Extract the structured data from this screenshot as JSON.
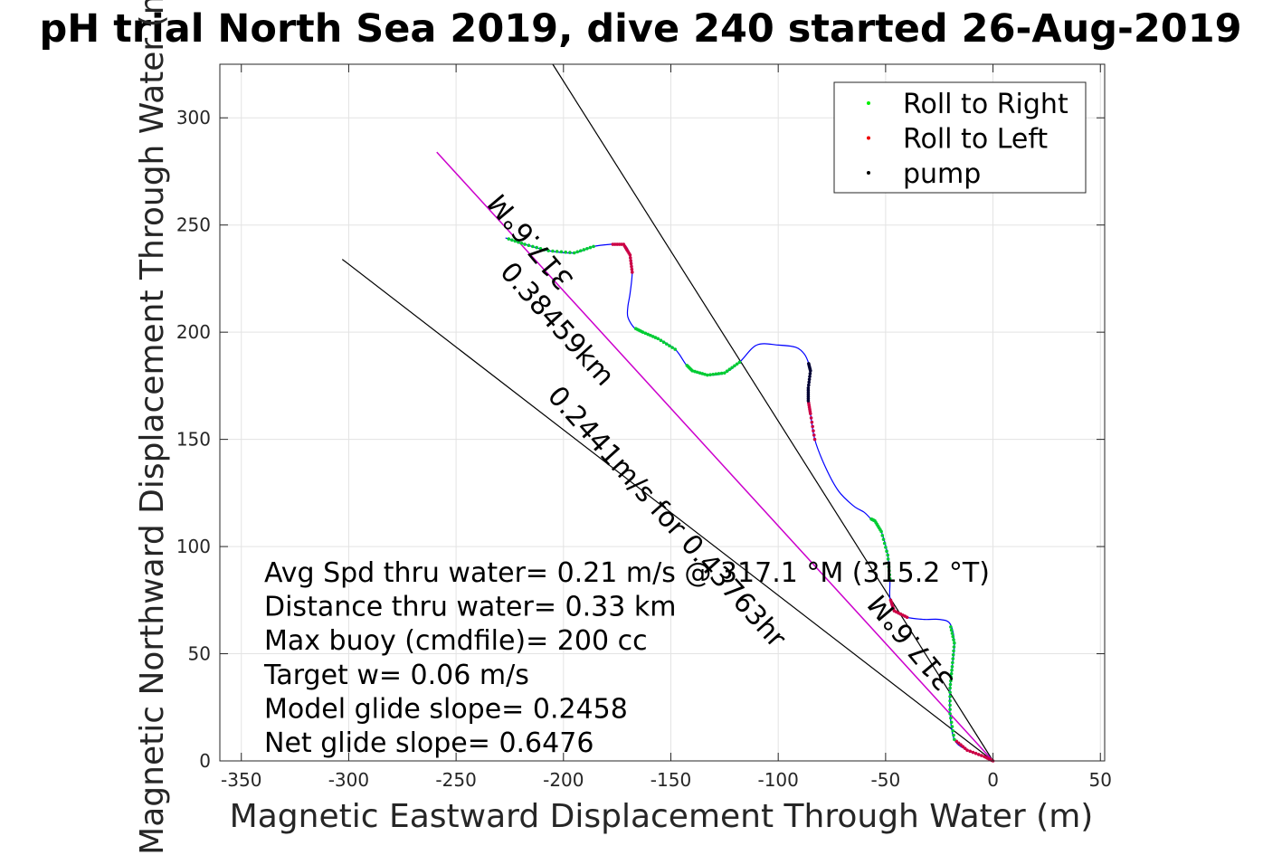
{
  "chart_data": {
    "type": "line",
    "title": "pH trial North Sea 2019, dive 240 started 26-Aug-2019",
    "xlabel": "Magnetic Eastward Displacement Through Water (m)",
    "ylabel": "Magnetic Northward Displacement Through Water (m)",
    "xlim": [
      -360,
      52
    ],
    "ylim": [
      0,
      325
    ],
    "xticks": [
      -350,
      -300,
      -250,
      -200,
      -150,
      -100,
      -50,
      0,
      50
    ],
    "yticks": [
      0,
      50,
      100,
      150,
      200,
      250,
      300
    ],
    "grid": true,
    "legend": {
      "placement": "top-right",
      "entries": [
        {
          "label": "Roll to Right",
          "color": "#00ee00"
        },
        {
          "label": "Roll to Left",
          "color": "#ee0000"
        },
        {
          "label": "pump",
          "color": "#000000"
        }
      ]
    },
    "colors": {
      "track": "#0000ff",
      "roll_right": "#00cc33",
      "roll_left": "#cc0044",
      "pump": "#000033",
      "mean_line": "#cc00cc",
      "ref_lines": "#000000"
    },
    "track": {
      "x": [
        0,
        -4,
        -12,
        -18,
        -20,
        -20,
        -19,
        -18,
        -20,
        -25,
        -32,
        -40,
        -46,
        -48,
        -48,
        -49,
        -52,
        -55,
        -57,
        -57,
        -60,
        -65,
        -72,
        -78,
        -83,
        -85,
        -86,
        -86,
        -85,
        -86,
        -88,
        -92,
        -100,
        -110,
        -118,
        -125,
        -133,
        -140,
        -143,
        -148,
        -156,
        -163,
        -167,
        -170,
        -170,
        -169,
        -168,
        -169,
        -172,
        -178,
        -186,
        -195,
        -207,
        -218,
        -227
      ],
      "y": [
        0,
        2,
        5,
        10,
        22,
        34,
        44,
        55,
        64,
        66,
        66,
        67,
        70,
        76,
        85,
        96,
        107,
        112,
        113,
        113,
        116,
        119,
        126,
        137,
        150,
        162,
        168,
        174,
        182,
        186,
        190,
        193,
        194,
        194,
        186,
        181,
        180,
        182,
        185,
        192,
        197,
        200,
        202,
        207,
        212,
        218,
        228,
        236,
        241,
        241,
        240,
        237,
        238,
        241,
        244
      ]
    },
    "segments": [
      {
        "kind": "roll_left",
        "from": 0,
        "to": 3
      },
      {
        "kind": "roll_right",
        "from": 3,
        "to": 8
      },
      {
        "kind": "roll_left",
        "from": 11,
        "to": 13
      },
      {
        "kind": "roll_right",
        "from": 14,
        "to": 18
      },
      {
        "kind": "roll_left",
        "from": 24,
        "to": 26
      },
      {
        "kind": "pump",
        "from": 26,
        "to": 29
      },
      {
        "kind": "roll_right",
        "from": 34,
        "to": 38
      },
      {
        "kind": "roll_right",
        "from": 39,
        "to": 42
      },
      {
        "kind": "roll_left",
        "from": 46,
        "to": 49
      },
      {
        "kind": "roll_right",
        "from": 50,
        "to": 54
      }
    ],
    "ref_lines": [
      {
        "x": [
          0,
          -205
        ],
        "y": [
          0,
          325
        ]
      },
      {
        "x": [
          0,
          -303
        ],
        "y": [
          0,
          234
        ]
      }
    ],
    "mean_line": {
      "x": [
        0,
        -259
      ],
      "y": [
        0,
        284
      ]
    },
    "annotations": [
      {
        "text": "317.6°M",
        "x": -212,
        "y": 245,
        "rotate": 230
      },
      {
        "text": "0.38459km",
        "x": -206,
        "y": 201,
        "rotate": 48
      },
      {
        "text": "0.2441m/s for 0.43763hr",
        "x": -155,
        "y": 111,
        "rotate": 48
      },
      {
        "text": "317.6°M",
        "x": -35,
        "y": 58,
        "rotate": 230
      }
    ],
    "stats": [
      "Avg Spd thru water=  0.21 m/s @ 317.1 °M (315.2 °T)",
      "Distance thru water=  0.33 km",
      "Max buoy (cmdfile)= 200 cc",
      "Target w= 0.06 m/s",
      "Model glide slope= 0.2458",
      "Net glide slope= 0.6476"
    ]
  }
}
